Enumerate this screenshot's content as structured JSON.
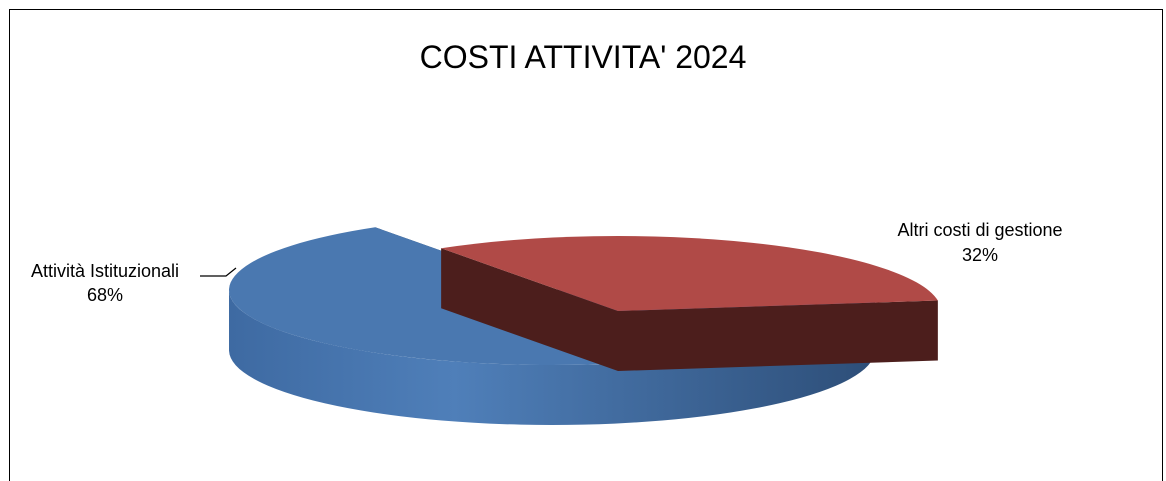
{
  "chart_data": {
    "type": "pie",
    "title": "COSTI ATTIVITA' 2024",
    "slices": [
      {
        "label": "Attività Istituzionali",
        "value": 68,
        "value_label": "68%",
        "color": "#4a78b0"
      },
      {
        "label": "Altri costi di gestione",
        "value": 32,
        "value_label": "32%",
        "color": "#b04a47"
      }
    ]
  }
}
